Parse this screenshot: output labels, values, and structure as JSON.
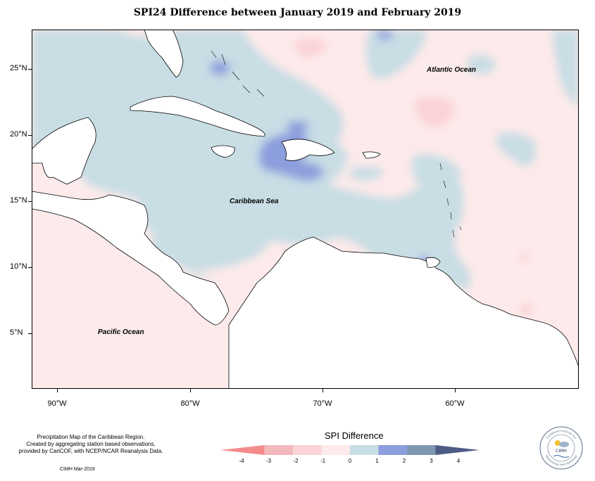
{
  "title": "SPI24 Difference between January 2019 and February 2019",
  "labels": {
    "atlantic": "Atlantic Ocean",
    "caribbean": "Caribbean Sea",
    "pacific": "Pacific Ocean"
  },
  "latitude_ticks": [
    "25°N",
    "20°N",
    "15°N",
    "10°N",
    "5°N"
  ],
  "longitude_ticks": [
    "90°W",
    "80°W",
    "70°W",
    "60°W"
  ],
  "legend": {
    "title": "SPI Difference",
    "ticks": [
      "-4",
      "-3",
      "-2",
      "-1",
      "0",
      "1",
      "2",
      "3",
      "4"
    ],
    "colors": [
      "#f48a8c",
      "#f2b8bb",
      "#fad3d6",
      "#fdeaeb",
      "#c8dde4",
      "#8d9ede",
      "#7f97b1",
      "#4d5a85"
    ]
  },
  "credits": {
    "line1": "Precipitation Map of the Caribbean Region.",
    "line2": "Created by aggregating station based observations,",
    "line3": "provided by CariCOF, with NCEP/NCAR Reanalysis Data.",
    "date": "CIMH Mar-2019"
  },
  "logo": {
    "name": "CIMH",
    "top_text": "Caribbean Institute for",
    "bottom_text": "Meteorology and Hydrology"
  }
}
